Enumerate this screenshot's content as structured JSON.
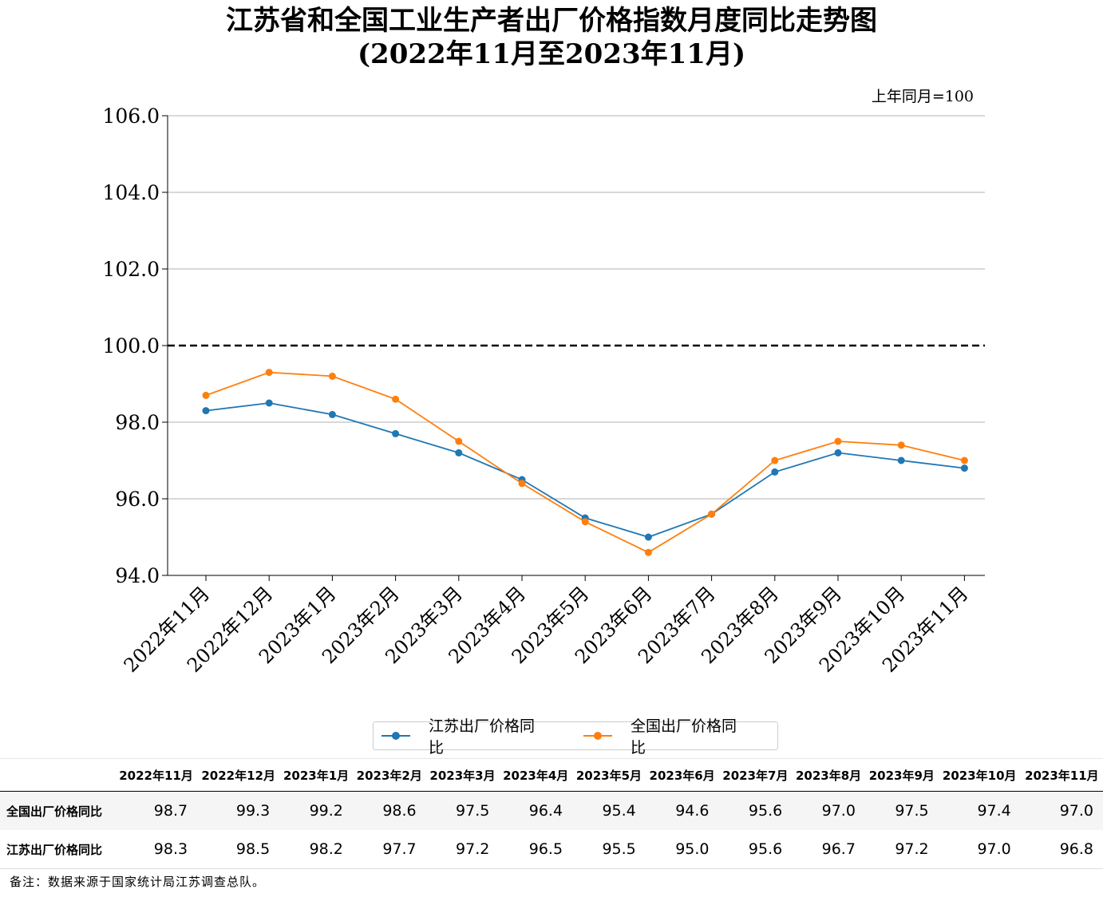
{
  "title_line1": "江苏省和全国工业生产者出厂价格指数月度同比走势图",
  "title_line2": "(2022年11月至2023年11月)",
  "unit_note": "上年同月=100",
  "legend": [
    {
      "label": "江苏出厂价格同比",
      "color": "#1f77b4"
    },
    {
      "label": "全国出厂价格同比",
      "color": "#ff7f0e"
    }
  ],
  "chart_data": {
    "type": "line",
    "categories": [
      "2022年11月",
      "2022年12月",
      "2023年1月",
      "2023年2月",
      "2023年3月",
      "2023年4月",
      "2023年5月",
      "2023年6月",
      "2023年7月",
      "2023年8月",
      "2023年9月",
      "2023年10月",
      "2023年11月"
    ],
    "series": [
      {
        "name": "江苏出厂价格同比",
        "color": "#1f77b4",
        "values": [
          98.3,
          98.5,
          98.2,
          97.7,
          97.2,
          96.5,
          95.5,
          95.0,
          95.6,
          96.7,
          97.2,
          97.0,
          96.8
        ]
      },
      {
        "name": "全国出厂价格同比",
        "color": "#ff7f0e",
        "values": [
          98.7,
          99.3,
          99.2,
          98.6,
          97.5,
          96.4,
          95.4,
          94.6,
          95.6,
          97.0,
          97.5,
          97.4,
          97.0
        ]
      }
    ],
    "ylim": [
      94.0,
      106.0
    ],
    "yticks": [
      "94.0",
      "96.0",
      "98.0",
      "100.0",
      "102.0",
      "104.0",
      "106.0"
    ],
    "reference_line": 100.0,
    "grid": "horizontal"
  },
  "table": {
    "columns": [
      "2022年11月",
      "2022年12月",
      "2023年1月",
      "2023年2月",
      "2023年3月",
      "2023年4月",
      "2023年5月",
      "2023年6月",
      "2023年7月",
      "2023年8月",
      "2023年9月",
      "2023年10月",
      "2023年11月"
    ],
    "rows": [
      {
        "label": "全国出厂价格同比",
        "values": [
          "98.7",
          "99.3",
          "99.2",
          "98.6",
          "97.5",
          "96.4",
          "95.4",
          "94.6",
          "95.6",
          "97.0",
          "97.5",
          "97.4",
          "97.0"
        ]
      },
      {
        "label": "江苏出厂价格同比",
        "values": [
          "98.3",
          "98.5",
          "98.2",
          "97.7",
          "97.2",
          "96.5",
          "95.5",
          "95.0",
          "95.6",
          "96.7",
          "97.2",
          "97.0",
          "96.8"
        ]
      }
    ]
  },
  "footnote": "备注：数据来源于国家统计局江苏调查总队。"
}
